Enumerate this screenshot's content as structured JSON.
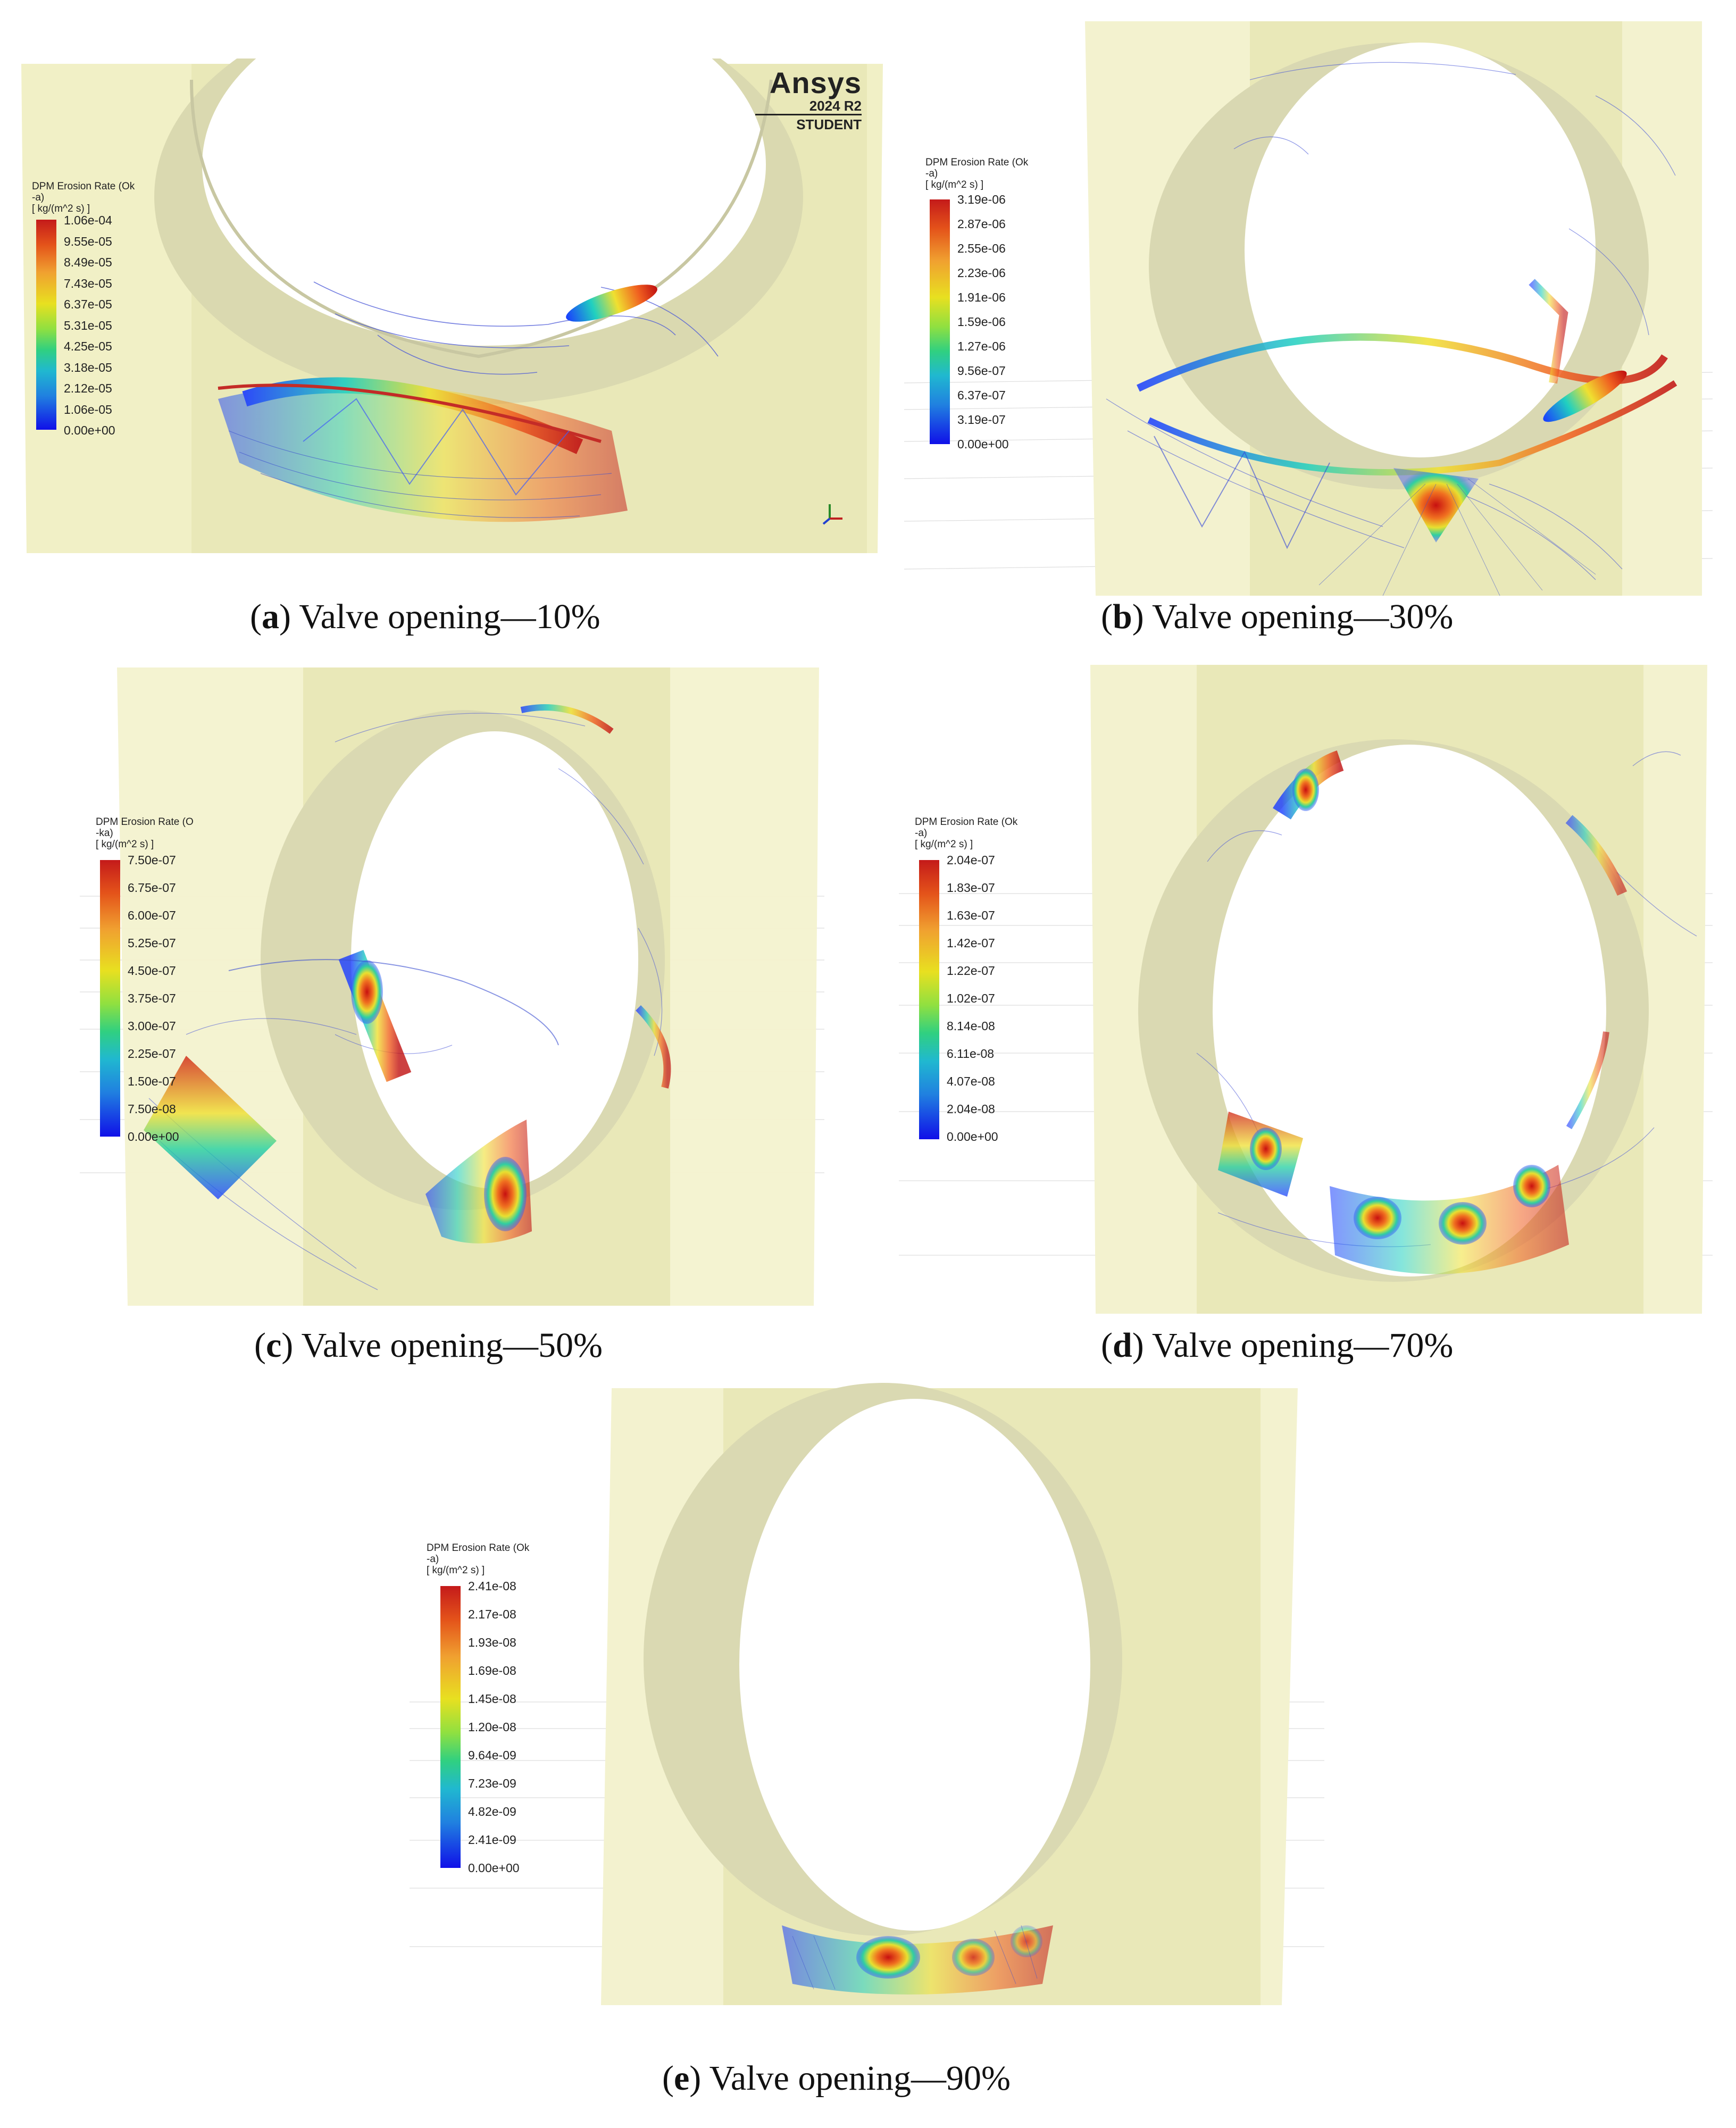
{
  "figure": {
    "panels": [
      {
        "id": "a",
        "caption_letter": "a",
        "caption_text": " Valve opening—10%",
        "legend": {
          "title": "DPM Erosion Rate (Ok\n-a)\n[ kg/(m^2 s) ]",
          "ticks": [
            "1.06e-04",
            "9.55e-05",
            "8.49e-05",
            "7.43e-05",
            "6.37e-05",
            "5.31e-05",
            "4.25e-05",
            "3.18e-05",
            "2.12e-05",
            "1.06e-05",
            "0.00e+00"
          ]
        },
        "watermark": {
          "brand": "Ansys",
          "version": "2024 R2",
          "edition": "STUDENT"
        }
      },
      {
        "id": "b",
        "caption_letter": "b",
        "caption_text": " Valve opening—30%",
        "legend": {
          "title": "DPM Erosion Rate (Ok\n-a)\n[ kg/(m^2 s) ]",
          "ticks": [
            "3.19e-06",
            "2.87e-06",
            "2.55e-06",
            "2.23e-06",
            "1.91e-06",
            "1.59e-06",
            "1.27e-06",
            "9.56e-07",
            "6.37e-07",
            "3.19e-07",
            "0.00e+00"
          ]
        }
      },
      {
        "id": "c",
        "caption_letter": "c",
        "caption_text": " Valve opening—50%",
        "legend": {
          "title": "DPM Erosion Rate (O\n-ka)\n[ kg/(m^2 s) ]",
          "ticks": [
            "7.50e-07",
            "6.75e-07",
            "6.00e-07",
            "5.25e-07",
            "4.50e-07",
            "3.75e-07",
            "3.00e-07",
            "2.25e-07",
            "1.50e-07",
            "7.50e-08",
            "0.00e+00"
          ]
        }
      },
      {
        "id": "d",
        "caption_letter": "d",
        "caption_text": " Valve opening—70%",
        "legend": {
          "title": "DPM Erosion Rate (Ok\n-a)\n[ kg/(m^2 s) ]",
          "ticks": [
            "2.04e-07",
            "1.83e-07",
            "1.63e-07",
            "1.42e-07",
            "1.22e-07",
            "1.02e-07",
            "8.14e-08",
            "6.11e-08",
            "4.07e-08",
            "2.04e-08",
            "0.00e+00"
          ]
        }
      },
      {
        "id": "e",
        "caption_letter": "e",
        "caption_text": " Valve opening—90%",
        "legend": {
          "title": "DPM Erosion Rate (Ok\n-a)\n[ kg/(m^2 s) ]",
          "ticks": [
            "2.41e-08",
            "2.17e-08",
            "1.93e-08",
            "1.69e-08",
            "1.45e-08",
            "1.20e-08",
            "9.64e-09",
            "7.23e-09",
            "4.82e-09",
            "2.41e-09",
            "0.00e+00"
          ]
        }
      }
    ]
  }
}
